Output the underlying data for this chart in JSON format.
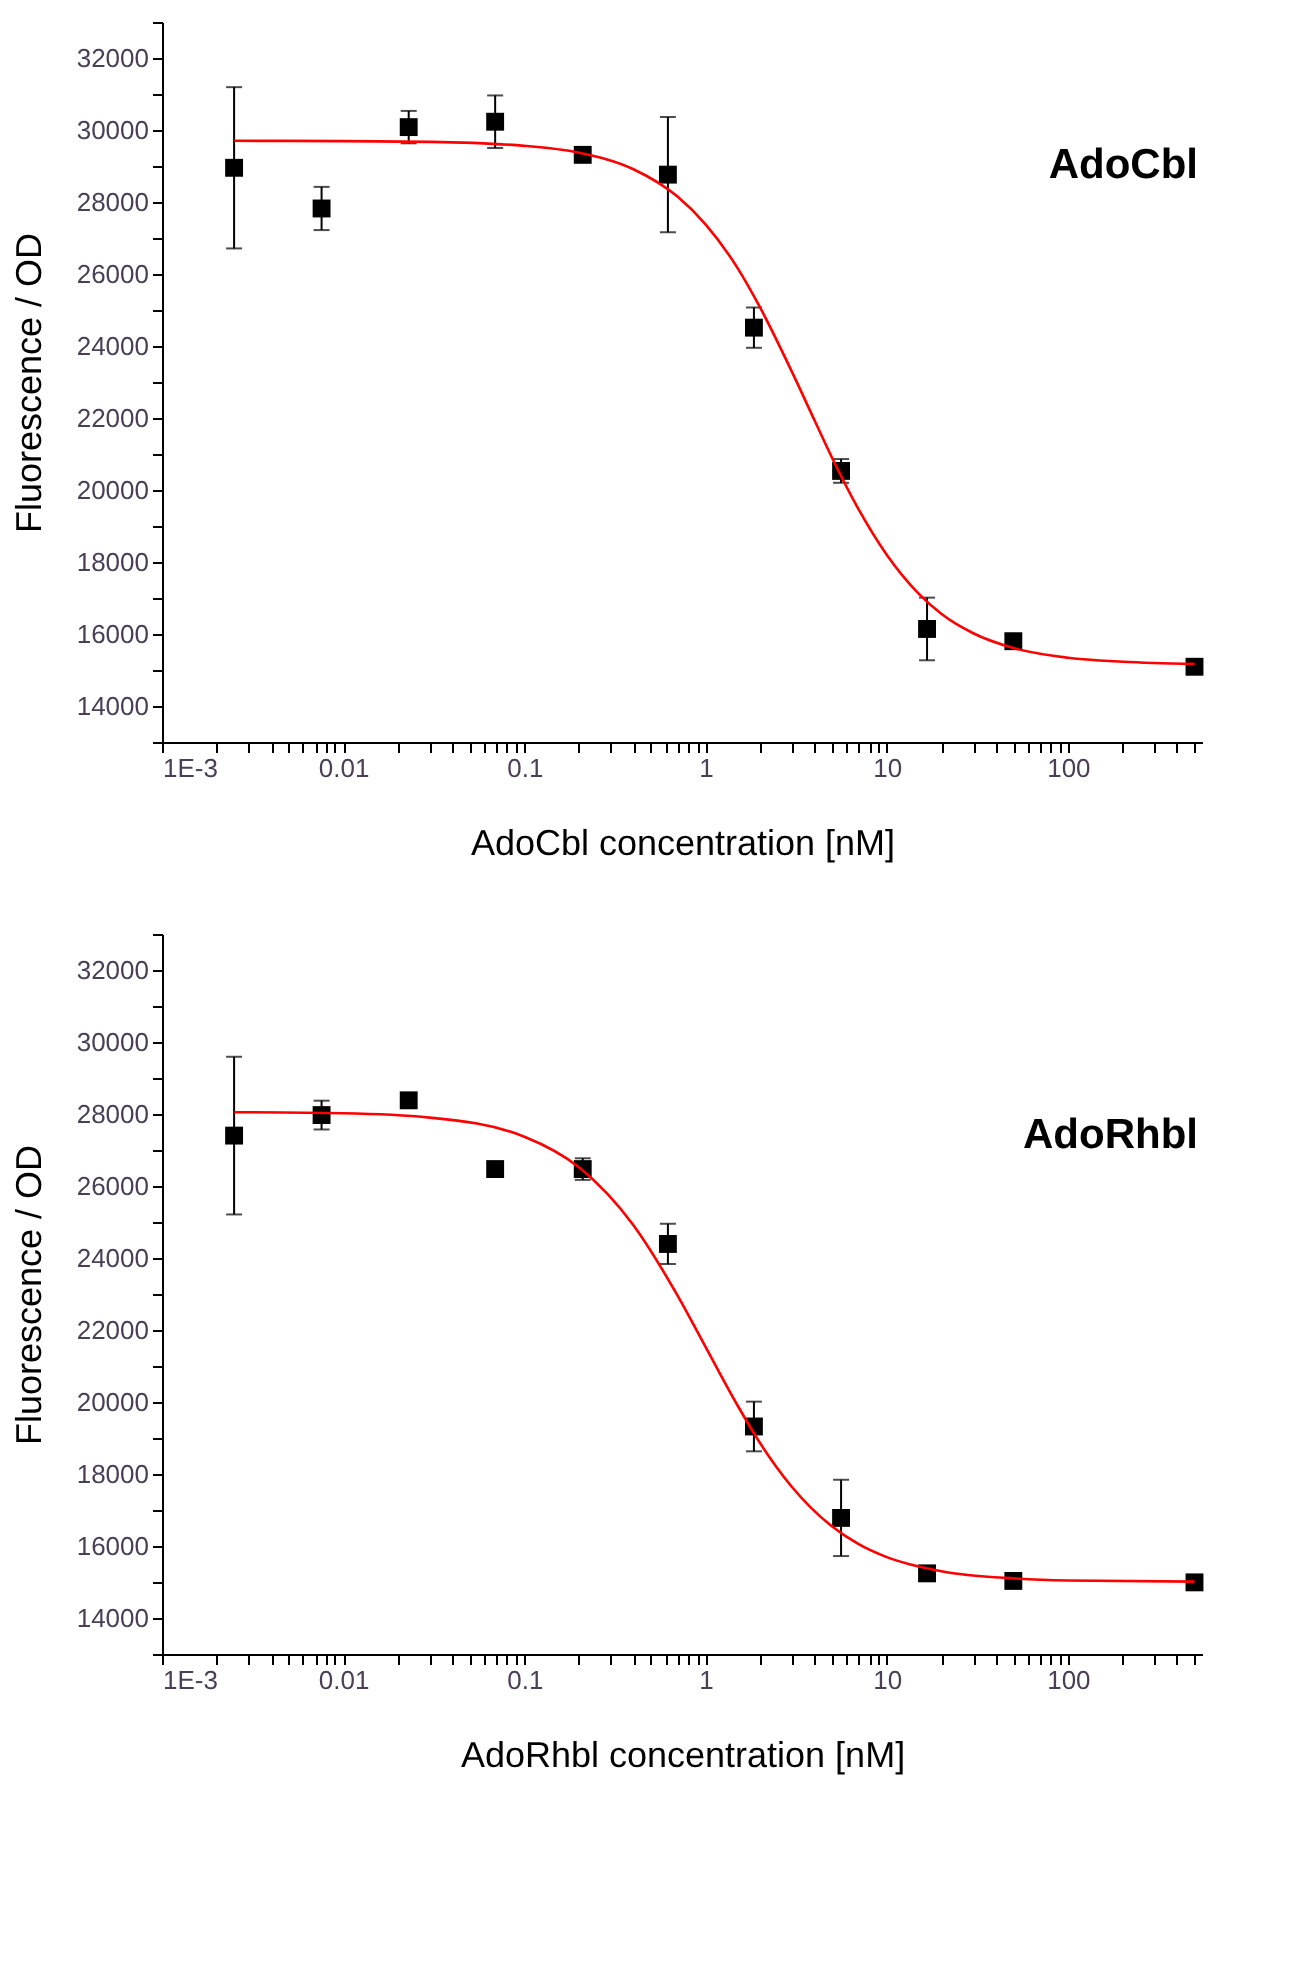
{
  "chart_data": [
    {
      "type": "scatter",
      "grid": false,
      "legend": false,
      "ylabel": "Fluorescence  / OD",
      "xlabel": "AdoCbl concentration [nM]",
      "annotations": [
        "AdoCbl"
      ],
      "log": "x",
      "xlim": [
        0.001,
        550
      ],
      "ylim": [
        13000,
        33000
      ],
      "xticks": [
        {
          "value": 0.001,
          "label": "1E-3"
        },
        {
          "value": 0.002,
          "label": null
        },
        {
          "value": 0.003,
          "label": null
        },
        {
          "value": 0.004,
          "label": null
        },
        {
          "value": 0.005,
          "label": null
        },
        {
          "value": 0.006,
          "label": null
        },
        {
          "value": 0.007,
          "label": null
        },
        {
          "value": 0.008,
          "label": null
        },
        {
          "value": 0.009,
          "label": null
        },
        0.01,
        {
          "value": 0.02,
          "label": null
        },
        {
          "value": 0.03,
          "label": null
        },
        {
          "value": 0.04,
          "label": null
        },
        {
          "value": 0.05,
          "label": null
        },
        {
          "value": 0.06,
          "label": null
        },
        {
          "value": 0.07,
          "label": null
        },
        {
          "value": 0.08,
          "label": null
        },
        {
          "value": 0.09,
          "label": null
        },
        0.1,
        {
          "value": 0.2,
          "label": null
        },
        {
          "value": 0.3,
          "label": null
        },
        {
          "value": 0.4,
          "label": null
        },
        {
          "value": 0.5,
          "label": null
        },
        {
          "value": 0.6,
          "label": null
        },
        {
          "value": 0.7,
          "label": null
        },
        {
          "value": 0.8,
          "label": null
        },
        {
          "value": 0.9,
          "label": null
        },
        1,
        {
          "value": 2,
          "label": null
        },
        {
          "value": 3,
          "label": null
        },
        {
          "value": 4,
          "label": null
        },
        {
          "value": 5,
          "label": null
        },
        {
          "value": 6,
          "label": null
        },
        {
          "value": 7,
          "label": null
        },
        {
          "value": 8,
          "label": null
        },
        {
          "value": 9,
          "label": null
        },
        10,
        {
          "value": 20,
          "label": null
        },
        {
          "value": 30,
          "label": null
        },
        {
          "value": 40,
          "label": null
        },
        {
          "value": 50,
          "label": null
        },
        {
          "value": 60,
          "label": null
        },
        {
          "value": 70,
          "label": null
        },
        {
          "value": 80,
          "label": null
        },
        {
          "value": 90,
          "label": null
        },
        100,
        {
          "value": 200,
          "label": null
        },
        {
          "value": 300,
          "label": null
        },
        {
          "value": 400,
          "label": null
        },
        {
          "value": 500,
          "label": null
        }
      ],
      "yticks": [
        {
          "value": 13000,
          "label": null
        },
        14000,
        {
          "value": 15000,
          "label": null
        },
        16000,
        {
          "value": 17000,
          "label": null
        },
        18000,
        {
          "value": 19000,
          "label": null
        },
        20000,
        {
          "value": 21000,
          "label": null
        },
        22000,
        {
          "value": 23000,
          "label": null
        },
        24000,
        {
          "value": 25000,
          "label": null
        },
        26000,
        {
          "value": 27000,
          "label": null
        },
        28000,
        {
          "value": 29000,
          "label": null
        },
        30000,
        {
          "value": 31000,
          "label": null
        },
        32000,
        {
          "value": 33000,
          "label": null
        }
      ],
      "series": [
        {
          "type": "scatter",
          "marker": "square",
          "color": "#000000",
          "x": [
            0.0025,
            0.0076,
            0.023,
            0.069,
            0.21,
            0.62,
            1.85,
            5.6,
            16.7,
            50,
            500
          ],
          "values": [
            28950,
            27820,
            30080,
            30230,
            29310,
            28760,
            24510,
            20530,
            16140,
            15800,
            15090
          ],
          "errors": [
            2240,
            600,
            450,
            730,
            150,
            1600,
            560,
            330,
            870,
            200,
            150
          ]
        },
        {
          "type": "line",
          "color": "#ff0000",
          "x": [
            0.0025,
            0.01,
            0.03,
            0.1,
            0.2,
            0.4,
            0.7,
            1,
            1.5,
            2,
            3,
            4,
            5,
            7,
            10,
            15,
            20,
            30,
            50,
            100,
            200,
            500
          ],
          "values": [
            29700,
            29690,
            29670,
            29560,
            29370,
            28910,
            28150,
            27380,
            26170,
            25070,
            23280,
            21930,
            20890,
            19460,
            18200,
            17120,
            16560,
            16020,
            15610,
            15340,
            15230,
            15170
          ]
        }
      ]
    },
    {
      "type": "scatter",
      "grid": false,
      "legend": false,
      "ylabel": "Fluorescence  / OD",
      "xlabel": "AdoRhbl concentration [nM]",
      "annotations": [
        "AdoRhbl"
      ],
      "log": "x",
      "xlim": [
        0.001,
        550
      ],
      "ylim": [
        13000,
        33000
      ],
      "xticks": [
        {
          "value": 0.001,
          "label": "1E-3"
        },
        {
          "value": 0.002,
          "label": null
        },
        {
          "value": 0.003,
          "label": null
        },
        {
          "value": 0.004,
          "label": null
        },
        {
          "value": 0.005,
          "label": null
        },
        {
          "value": 0.006,
          "label": null
        },
        {
          "value": 0.007,
          "label": null
        },
        {
          "value": 0.008,
          "label": null
        },
        {
          "value": 0.009,
          "label": null
        },
        0.01,
        {
          "value": 0.02,
          "label": null
        },
        {
          "value": 0.03,
          "label": null
        },
        {
          "value": 0.04,
          "label": null
        },
        {
          "value": 0.05,
          "label": null
        },
        {
          "value": 0.06,
          "label": null
        },
        {
          "value": 0.07,
          "label": null
        },
        {
          "value": 0.08,
          "label": null
        },
        {
          "value": 0.09,
          "label": null
        },
        0.1,
        {
          "value": 0.2,
          "label": null
        },
        {
          "value": 0.3,
          "label": null
        },
        {
          "value": 0.4,
          "label": null
        },
        {
          "value": 0.5,
          "label": null
        },
        {
          "value": 0.6,
          "label": null
        },
        {
          "value": 0.7,
          "label": null
        },
        {
          "value": 0.8,
          "label": null
        },
        {
          "value": 0.9,
          "label": null
        },
        1,
        {
          "value": 2,
          "label": null
        },
        {
          "value": 3,
          "label": null
        },
        {
          "value": 4,
          "label": null
        },
        {
          "value": 5,
          "label": null
        },
        {
          "value": 6,
          "label": null
        },
        {
          "value": 7,
          "label": null
        },
        {
          "value": 8,
          "label": null
        },
        {
          "value": 9,
          "label": null
        },
        10,
        {
          "value": 20,
          "label": null
        },
        {
          "value": 30,
          "label": null
        },
        {
          "value": 40,
          "label": null
        },
        {
          "value": 50,
          "label": null
        },
        {
          "value": 60,
          "label": null
        },
        {
          "value": 70,
          "label": null
        },
        {
          "value": 80,
          "label": null
        },
        {
          "value": 90,
          "label": null
        },
        100,
        {
          "value": 200,
          "label": null
        },
        {
          "value": 300,
          "label": null
        },
        {
          "value": 400,
          "label": null
        },
        {
          "value": 500,
          "label": null
        }
      ],
      "yticks": [
        {
          "value": 13000,
          "label": null
        },
        14000,
        {
          "value": 15000,
          "label": null
        },
        16000,
        {
          "value": 17000,
          "label": null
        },
        18000,
        {
          "value": 19000,
          "label": null
        },
        20000,
        {
          "value": 21000,
          "label": null
        },
        22000,
        {
          "value": 23000,
          "label": null
        },
        24000,
        {
          "value": 25000,
          "label": null
        },
        26000,
        {
          "value": 27000,
          "label": null
        },
        28000,
        {
          "value": 29000,
          "label": null
        },
        30000,
        {
          "value": 31000,
          "label": null
        },
        32000,
        {
          "value": 33000,
          "label": null
        }
      ],
      "series": [
        {
          "type": "scatter",
          "marker": "square",
          "color": "#000000",
          "x": [
            0.0025,
            0.0076,
            0.023,
            0.069,
            0.21,
            0.62,
            1.85,
            5.6,
            16.7,
            50,
            500
          ],
          "values": [
            27400,
            27970,
            28380,
            26470,
            26470,
            24390,
            19320,
            16780,
            15240,
            15030,
            14990
          ],
          "errors": [
            2190,
            400,
            100,
            200,
            300,
            560,
            690,
            1060,
            100,
            100,
            100
          ]
        },
        {
          "type": "line",
          "color": "#ff0000",
          "x": [
            0.0025,
            0.01,
            0.03,
            0.1,
            0.2,
            0.4,
            0.7,
            1,
            1.5,
            2,
            3,
            5,
            7,
            10,
            20,
            50,
            100,
            500
          ],
          "values": [
            28050,
            28020,
            27900,
            27370,
            26520,
            24910,
            22960,
            21530,
            19910,
            18860,
            17640,
            16540,
            16050,
            15690,
            15300,
            15100,
            15040,
            15010
          ]
        }
      ]
    }
  ]
}
